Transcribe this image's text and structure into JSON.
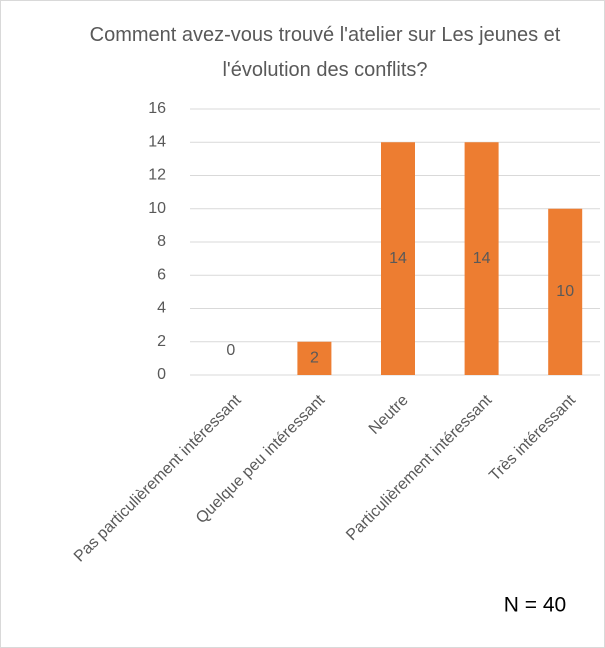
{
  "chart_data": {
    "type": "bar",
    "title": "Comment avez-vous trouvé l'atelier sur Les jeunes et l'évolution des conflits?",
    "categories": [
      "Pas particulièrement intéressant",
      "Quelque peu intéressant",
      "Neutre",
      "Particulièrement intéressant",
      "Très intéressant"
    ],
    "values": [
      0,
      2,
      14,
      14,
      10
    ],
    "color": "#ed7d31",
    "ylim": [
      0,
      16
    ],
    "yticks": [
      0,
      2,
      4,
      6,
      8,
      10,
      12,
      14,
      16
    ],
    "grid": true,
    "annotation": "N = 40"
  }
}
